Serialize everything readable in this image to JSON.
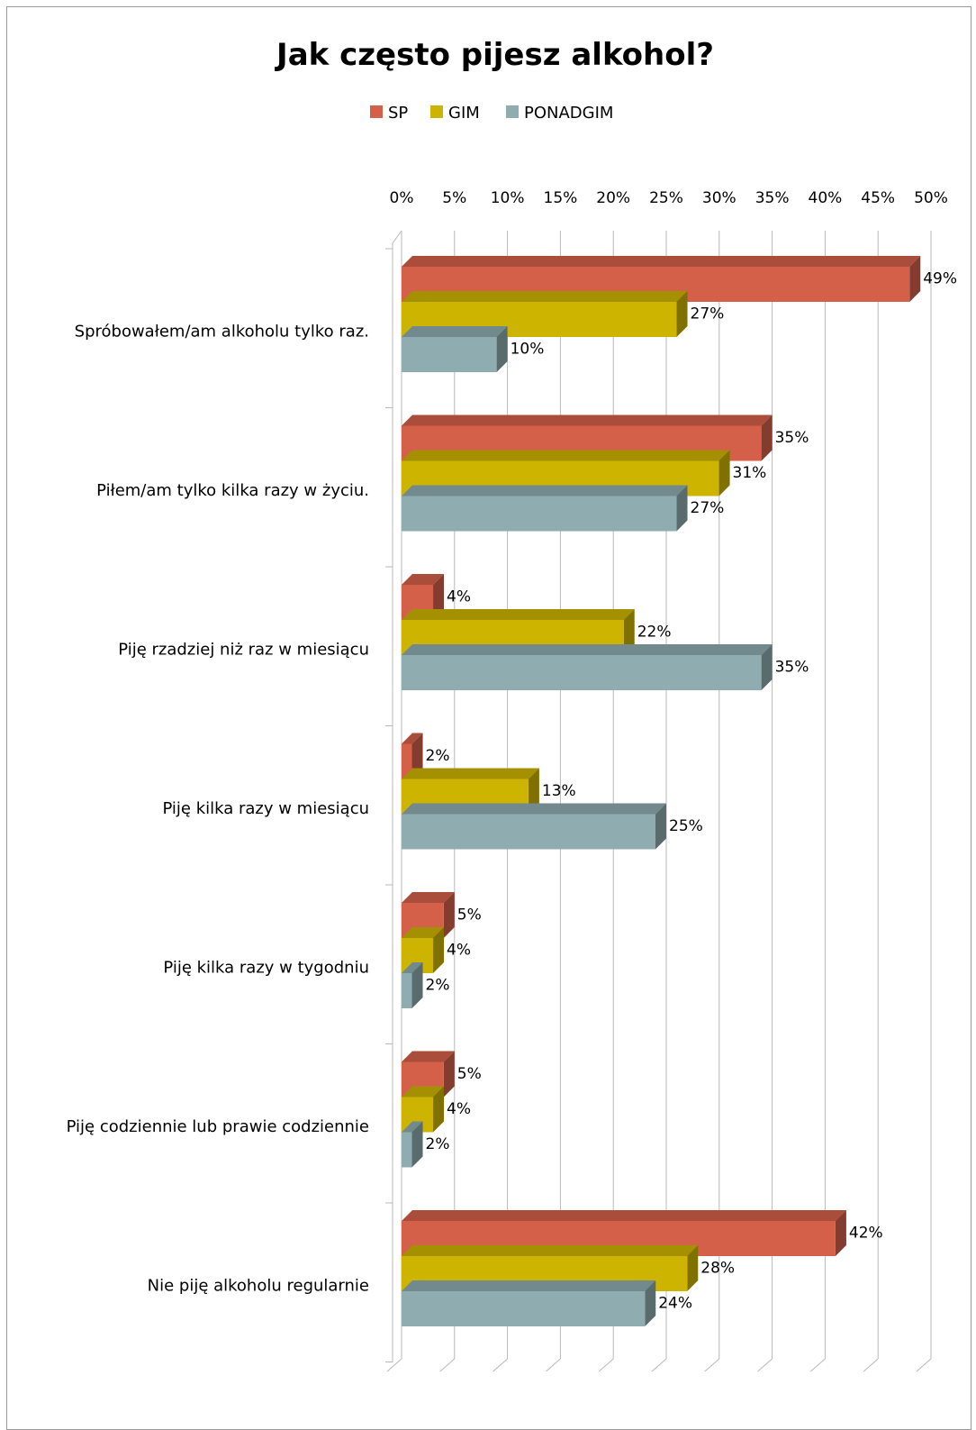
{
  "chart_data": {
    "type": "bar",
    "orientation": "horizontal",
    "title": "Jak często pijesz alkohol?",
    "xlim": [
      0,
      50
    ],
    "x_ticks": [
      "0%",
      "5%",
      "10%",
      "15%",
      "20%",
      "25%",
      "30%",
      "35%",
      "40%",
      "45%",
      "50%"
    ],
    "x_tick_values": [
      0,
      5,
      10,
      15,
      20,
      25,
      30,
      35,
      40,
      45,
      50
    ],
    "grid": true,
    "legend_position": "top",
    "categories": [
      "Spróbowałem/am alkoholu tylko raz.",
      "Piłem/am tylko kilka razy w życiu.",
      "Piję rzadziej niż raz w miesiącu",
      "Piję kilka razy w miesiącu",
      "Piję kilka razy w tygodniu",
      "Piję codziennie lub prawie codziennie",
      "Nie piję alkoholu regularnie"
    ],
    "series": [
      {
        "name": "SP",
        "color": "#d4604a",
        "values": [
          49,
          35,
          4,
          2,
          5,
          5,
          42
        ],
        "labels": [
          "49%",
          "35%",
          "4%",
          "2%",
          "5%",
          "5%",
          "42%"
        ]
      },
      {
        "name": "GIM",
        "color": "#cdb400",
        "values": [
          27,
          31,
          22,
          13,
          4,
          4,
          28
        ],
        "labels": [
          "27%",
          "31%",
          "22%",
          "13%",
          "4%",
          "4%",
          "28%"
        ]
      },
      {
        "name": "PONADGIM",
        "color": "#8fadb0",
        "values": [
          10,
          27,
          35,
          25,
          2,
          2,
          24
        ],
        "labels": [
          "10%",
          "27%",
          "35%",
          "25%",
          "2%",
          "2%",
          "24%"
        ]
      }
    ]
  }
}
